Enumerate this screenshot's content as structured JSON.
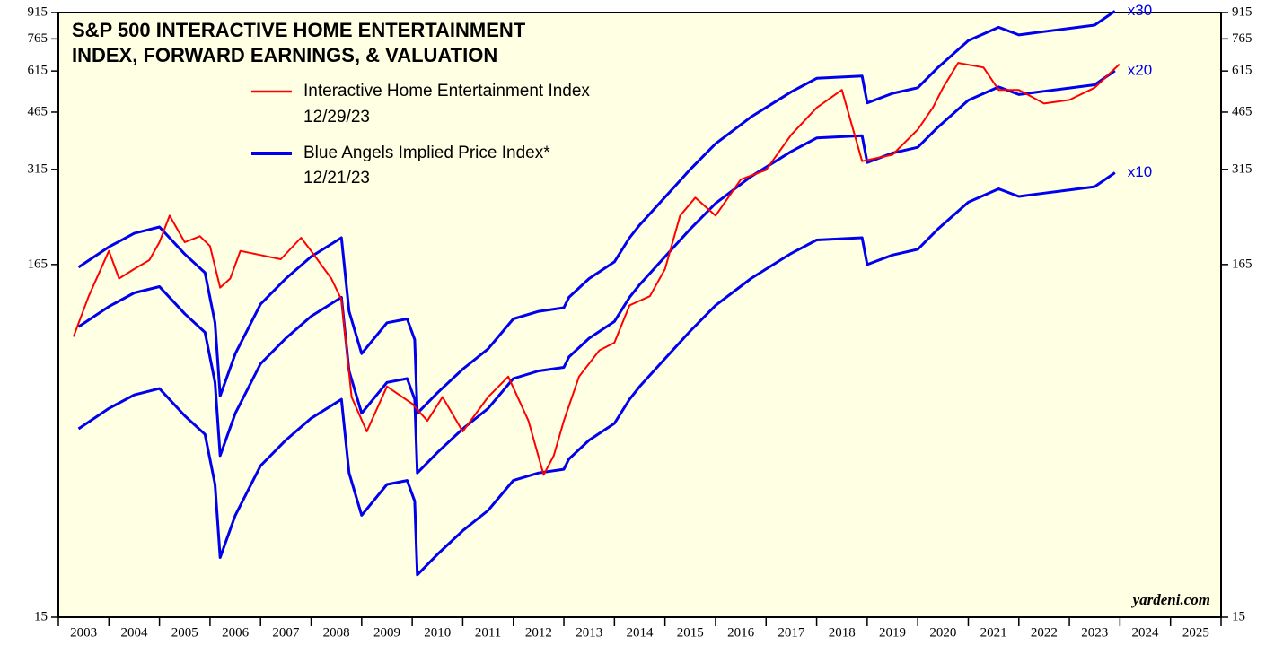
{
  "chart_data": {
    "type": "line",
    "title_lines": [
      "S&P 500 INTERACTIVE HOME ENTERTAINMENT",
      "INDEX, FORWARD EARNINGS, & VALUATION"
    ],
    "log_scale": true,
    "xlim": [
      2003,
      2026
    ],
    "xticks": [
      2003,
      2004,
      2005,
      2006,
      2007,
      2008,
      2009,
      2010,
      2011,
      2012,
      2013,
      2014,
      2015,
      2016,
      2017,
      2018,
      2019,
      2020,
      2021,
      2022,
      2023,
      2024,
      2025,
      2026
    ],
    "year_labels": [
      "2003",
      "2004",
      "2005",
      "2006",
      "2007",
      "2008",
      "2009",
      "2010",
      "2011",
      "2012",
      "2013",
      "2014",
      "2015",
      "2016",
      "2017",
      "2018",
      "2019",
      "2020",
      "2021",
      "2022",
      "2023",
      "2024",
      "2025"
    ],
    "ylim": [
      15,
      915
    ],
    "yticks": [
      15,
      165,
      315,
      465,
      615,
      765,
      915
    ],
    "series": [
      {
        "name": "Interactive Home Entertainment Index",
        "date": "12/29/23",
        "color": "#ff0000",
        "x": [
          2003.3,
          2003.6,
          2004,
          2004.2,
          2004.5,
          2004.8,
          2005,
          2005.2,
          2005.5,
          2005.8,
          2006,
          2006.2,
          2006.4,
          2006.6,
          2007,
          2007.4,
          2007.8,
          2008,
          2008.4,
          2008.6,
          2008.8,
          2009.1,
          2009.5,
          2010,
          2010.3,
          2010.6,
          2011,
          2011.5,
          2011.9,
          2012.3,
          2012.6,
          2012.8,
          2013,
          2013.3,
          2013.7,
          2014,
          2014.3,
          2014.7,
          2015,
          2015.3,
          2015.6,
          2016,
          2016.5,
          2017,
          2017.5,
          2018,
          2018.5,
          2018.9,
          2019.5,
          2020,
          2020.3,
          2020.5,
          2020.8,
          2021.3,
          2021.6,
          2022,
          2022.5,
          2023,
          2023.5,
          2023.99
        ],
        "values": [
          101,
          133,
          181,
          150,
          160,
          170,
          192,
          230,
          192,
          200,
          187,
          141,
          150,
          181,
          176,
          171,
          198,
          181,
          150,
          130,
          67,
          53,
          72,
          64,
          57,
          67,
          53,
          67,
          77,
          57,
          39.5,
          45,
          57,
          77,
          92,
          97,
          125,
          133,
          160,
          230,
          260,
          230,
          294,
          314,
          399,
          479,
          541,
          333,
          348,
          413,
          480,
          549,
          650,
          630,
          541,
          541,
          493,
          505,
          549,
          644
        ]
      },
      {
        "name": "x10",
        "color": "#0000ee",
        "x": [
          2003.4,
          2004,
          2004.5,
          2005,
          2005.5,
          2005.9,
          2006.1,
          2006.2,
          2006.5,
          2007,
          2007.5,
          2008,
          2008.6,
          2008.75,
          2009,
          2009.5,
          2009.9,
          2010.05,
          2010.1,
          2010.5,
          2011,
          2011.5,
          2012,
          2012.5,
          2013,
          2013.1,
          2013.5,
          2014,
          2014.3,
          2014.5,
          2015,
          2015.5,
          2016,
          2016.7,
          2017,
          2017.5,
          2018,
          2018.9,
          2019,
          2019.5,
          2020,
          2020.4,
          2021,
          2021.6,
          2022,
          2022.5,
          2023,
          2023.5,
          2023.9
        ],
        "values": [
          54,
          62,
          68,
          71,
          59,
          52,
          37,
          22.5,
          30,
          42,
          50,
          58,
          66,
          40,
          30,
          37,
          38,
          33,
          20,
          23,
          27,
          31,
          38,
          40,
          41,
          44,
          50,
          56,
          66,
          72,
          87,
          105,
          125,
          150,
          160,
          178,
          195,
          198,
          165,
          176,
          183,
          210,
          252,
          276,
          262,
          268,
          274,
          280,
          308
        ]
      },
      {
        "name": "x20",
        "color": "#0000ee",
        "x": [
          2003.4,
          2004,
          2004.5,
          2005,
          2005.5,
          2005.9,
          2006.1,
          2006.2,
          2006.5,
          2007,
          2007.5,
          2008,
          2008.6,
          2008.75,
          2009,
          2009.5,
          2009.9,
          2010.05,
          2010.1,
          2010.5,
          2011,
          2011.5,
          2012,
          2012.5,
          2013,
          2013.1,
          2013.5,
          2014,
          2014.3,
          2014.5,
          2015,
          2015.5,
          2016,
          2016.7,
          2017,
          2017.5,
          2018,
          2018.9,
          2019,
          2019.5,
          2020,
          2020.4,
          2021,
          2021.6,
          2022,
          2022.5,
          2023,
          2023.5,
          2023.9
        ],
        "values": [
          108,
          124,
          136,
          142,
          118,
          104,
          74,
          45,
          60,
          84,
          100,
          116,
          132,
          80,
          60,
          74,
          76,
          66,
          40,
          46,
          54,
          62,
          76,
          80,
          82,
          88,
          100,
          112,
          132,
          144,
          174,
          210,
          250,
          300,
          320,
          356,
          390,
          396,
          330,
          352,
          366,
          420,
          504,
          552,
          524,
          536,
          548,
          560,
          616
        ]
      },
      {
        "name": "x30",
        "color": "#0000ee",
        "x": [
          2003.4,
          2004,
          2004.5,
          2005,
          2005.5,
          2005.9,
          2006.1,
          2006.2,
          2006.5,
          2007,
          2007.5,
          2008,
          2008.6,
          2008.75,
          2009,
          2009.5,
          2009.9,
          2010.05,
          2010.1,
          2010.5,
          2011,
          2011.5,
          2012,
          2012.5,
          2013,
          2013.1,
          2013.5,
          2014,
          2014.3,
          2014.5,
          2015,
          2015.5,
          2016,
          2016.7,
          2017,
          2017.5,
          2018,
          2018.9,
          2019,
          2019.5,
          2020,
          2020.4,
          2021,
          2021.6,
          2022,
          2022.5,
          2023,
          2023.5,
          2023.9
        ],
        "values": [
          162,
          186,
          204,
          213,
          177,
          156,
          111,
          67.5,
          90,
          126,
          150,
          174,
          198,
          120,
          90,
          111,
          114,
          99,
          60,
          69,
          81,
          93,
          114,
          120,
          123,
          132,
          150,
          168,
          198,
          216,
          261,
          315,
          375,
          450,
          480,
          534,
          585,
          594,
          495,
          528,
          549,
          630,
          756,
          828,
          786,
          804,
          822,
          840,
          924
        ]
      }
    ],
    "implied_legend": {
      "label": "Blue Angels Implied Price Index*",
      "date": "12/21/23",
      "color": "#0000ee"
    },
    "source": "yardeni.com"
  }
}
